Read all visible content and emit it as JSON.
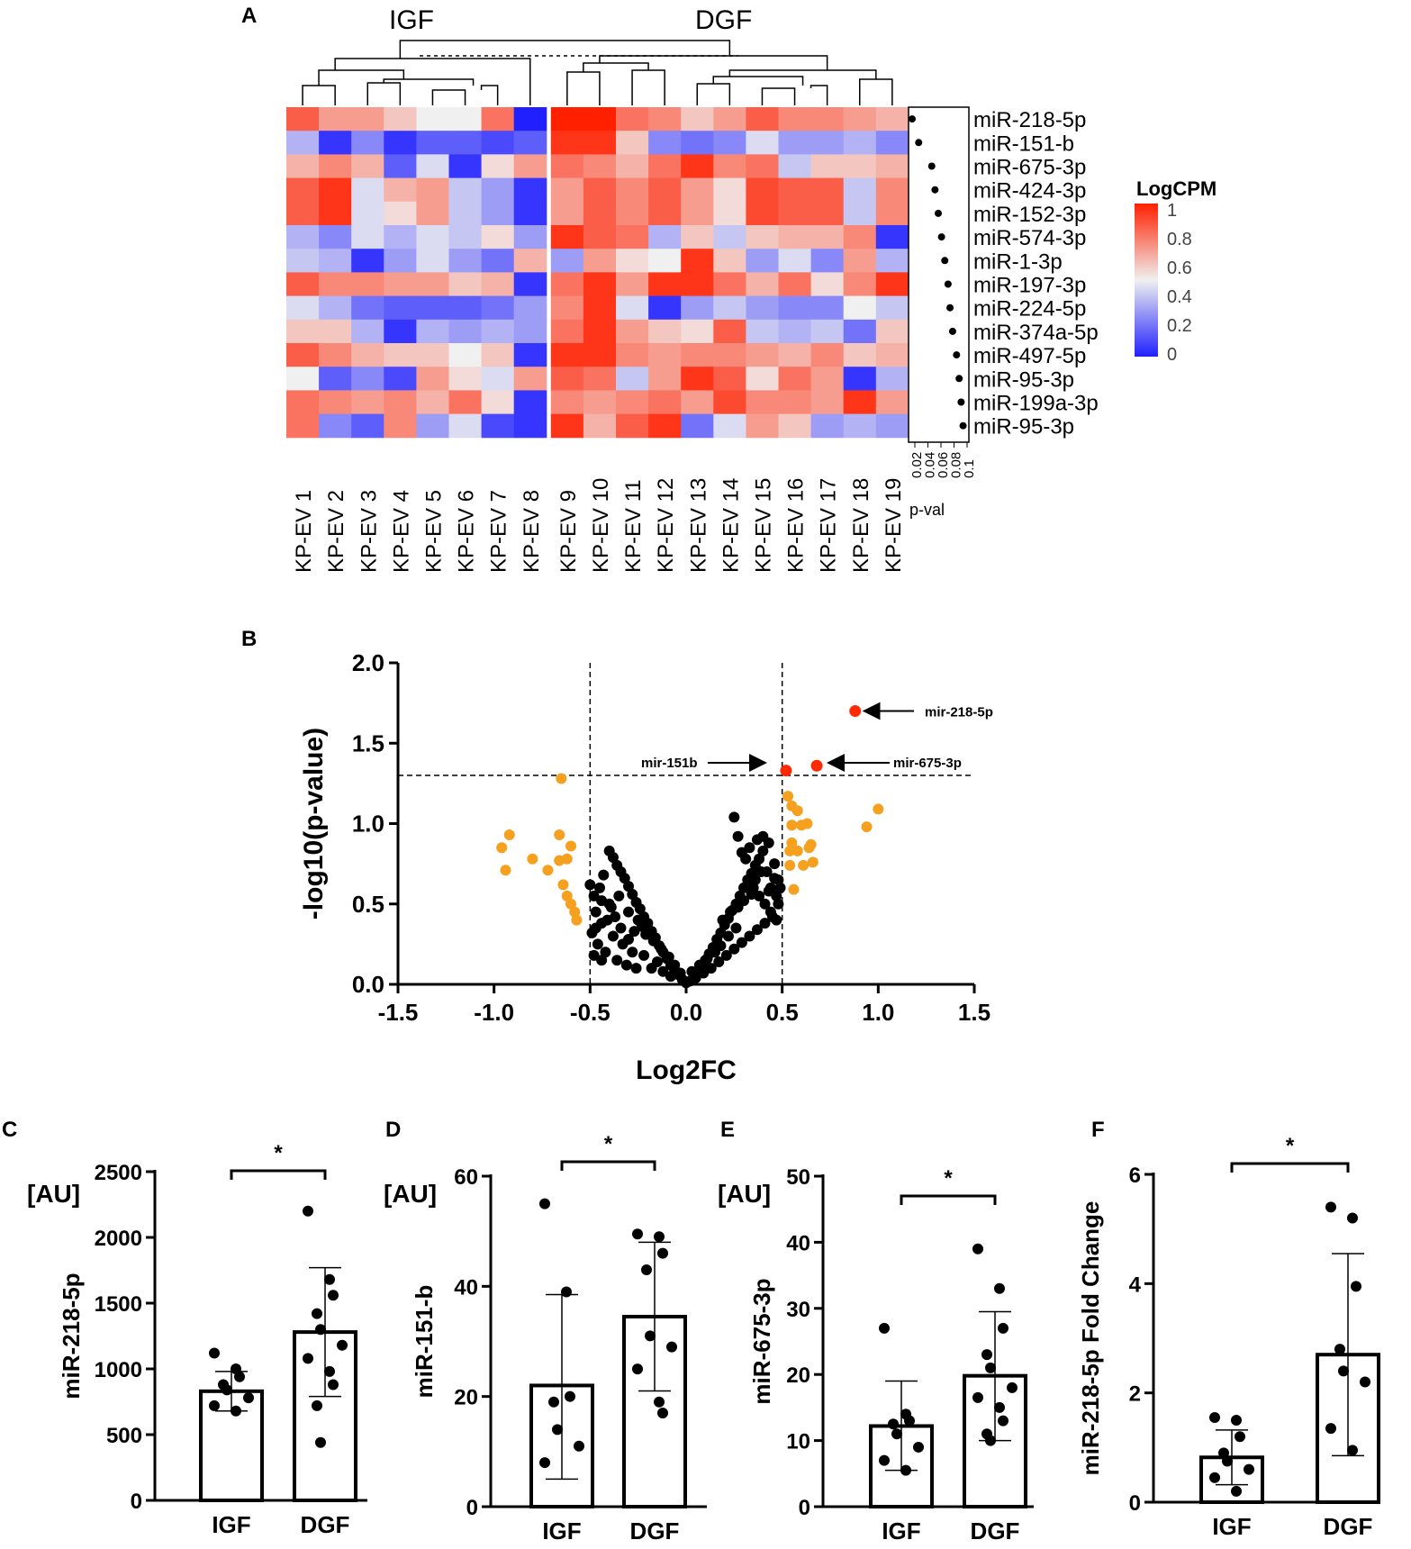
{
  "colors": {
    "heat_low": "#2020ff",
    "heat_mid": "#f0f0f0",
    "heat_high": "#ff2000",
    "volcano_sig": "#ff2a00",
    "volcano_trend": "#f5a01e",
    "volcano_ns": "#000000"
  },
  "panels": {
    "A": "A",
    "B": "B",
    "C": "C",
    "D": "D",
    "E": "E",
    "F": "F"
  },
  "chart_data": [
    {
      "id": "A",
      "type": "heatmap",
      "group_labels": [
        "IGF",
        "DGF"
      ],
      "columns": [
        "KP-EV 1",
        "KP-EV 2",
        "KP-EV 3",
        "KP-EV 4",
        "KP-EV 5",
        "KP-EV 6",
        "KP-EV 7",
        "KP-EV 8",
        "KP-EV 9",
        "KP-EV 10",
        "KP-EV 11",
        "KP-EV 12",
        "KP-EV 13",
        "KP-EV 14",
        "KP-EV 15",
        "KP-EV 16",
        "KP-EV 17",
        "KP-EV 18",
        "KP-EV 19"
      ],
      "rows": [
        "miR-218-5p",
        "miR-151-b",
        "miR-675-3p",
        "miR-424-3p",
        "miR-152-3p",
        "miR-574-3p",
        "miR-1-3p",
        "miR-197-3p",
        "miR-224-5p",
        "miR-374a-5p",
        "miR-497-5p",
        "miR-95-3p",
        "miR-199a-3p",
        "miR-95-3p"
      ],
      "values": [
        [
          0.85,
          0.7,
          0.7,
          0.6,
          0.5,
          0.5,
          0.8,
          0.0,
          1.0,
          1.0,
          0.8,
          0.75,
          0.6,
          0.7,
          0.85,
          0.75,
          0.75,
          0.7,
          0.65
        ],
        [
          0.35,
          0.05,
          0.25,
          0.05,
          0.15,
          0.15,
          0.1,
          0.15,
          0.95,
          0.95,
          0.6,
          0.25,
          0.2,
          0.25,
          0.45,
          0.3,
          0.3,
          0.35,
          0.25
        ],
        [
          0.65,
          0.75,
          0.65,
          0.15,
          0.45,
          0.05,
          0.55,
          0.7,
          0.8,
          0.75,
          0.65,
          0.8,
          0.95,
          0.75,
          0.8,
          0.4,
          0.6,
          0.6,
          0.65
        ],
        [
          0.85,
          0.95,
          0.45,
          0.65,
          0.7,
          0.4,
          0.3,
          0.05,
          0.7,
          0.85,
          0.75,
          0.85,
          0.7,
          0.55,
          0.9,
          0.85,
          0.85,
          0.4,
          0.75
        ],
        [
          0.85,
          0.95,
          0.45,
          0.55,
          0.7,
          0.4,
          0.3,
          0.05,
          0.7,
          0.85,
          0.75,
          0.85,
          0.7,
          0.55,
          0.9,
          0.85,
          0.85,
          0.4,
          0.75
        ],
        [
          0.35,
          0.25,
          0.45,
          0.35,
          0.45,
          0.4,
          0.55,
          0.3,
          0.95,
          0.85,
          0.8,
          0.35,
          0.6,
          0.4,
          0.6,
          0.65,
          0.65,
          0.75,
          0.05
        ],
        [
          0.4,
          0.35,
          0.05,
          0.3,
          0.45,
          0.3,
          0.2,
          0.65,
          0.3,
          0.7,
          0.55,
          0.5,
          0.95,
          0.6,
          0.3,
          0.45,
          0.25,
          0.7,
          0.35
        ],
        [
          0.85,
          0.75,
          0.75,
          0.7,
          0.7,
          0.6,
          0.65,
          0.05,
          0.8,
          0.95,
          0.7,
          0.95,
          0.95,
          0.8,
          0.65,
          0.8,
          0.55,
          0.75,
          0.95
        ],
        [
          0.45,
          0.35,
          0.2,
          0.15,
          0.15,
          0.15,
          0.2,
          0.3,
          0.75,
          0.95,
          0.45,
          0.05,
          0.3,
          0.4,
          0.3,
          0.25,
          0.25,
          0.5,
          0.4
        ],
        [
          0.6,
          0.6,
          0.35,
          0.05,
          0.35,
          0.3,
          0.35,
          0.3,
          0.8,
          0.95,
          0.7,
          0.6,
          0.55,
          0.85,
          0.4,
          0.35,
          0.4,
          0.2,
          0.6
        ],
        [
          0.85,
          0.75,
          0.65,
          0.6,
          0.6,
          0.5,
          0.6,
          0.05,
          0.95,
          0.95,
          0.75,
          0.7,
          0.75,
          0.75,
          0.7,
          0.65,
          0.75,
          0.6,
          0.65
        ],
        [
          0.5,
          0.15,
          0.25,
          0.1,
          0.7,
          0.55,
          0.45,
          0.7,
          0.85,
          0.8,
          0.4,
          0.7,
          0.95,
          0.85,
          0.55,
          0.8,
          0.7,
          0.05,
          0.35
        ],
        [
          0.8,
          0.75,
          0.7,
          0.75,
          0.65,
          0.8,
          0.55,
          0.05,
          0.75,
          0.7,
          0.75,
          0.8,
          0.7,
          0.9,
          0.75,
          0.75,
          0.7,
          0.95,
          0.7
        ],
        [
          0.8,
          0.25,
          0.15,
          0.75,
          0.3,
          0.45,
          0.1,
          0.05,
          0.95,
          0.65,
          0.85,
          0.95,
          0.2,
          0.45,
          0.7,
          0.6,
          0.3,
          0.35,
          0.3
        ]
      ],
      "pvals": [
        0.02,
        0.03,
        0.05,
        0.055,
        0.06,
        0.065,
        0.07,
        0.075,
        0.078,
        0.082,
        0.088,
        0.092,
        0.095,
        0.098
      ],
      "pval_ticks": [
        "0.02",
        "0.04",
        "0.06",
        "0.08",
        "0.1"
      ],
      "pval_label": "p-val",
      "legend_title": "LogCPM",
      "legend_ticks": [
        "1",
        "0.8",
        "0.6",
        "0.4",
        "0.2",
        "0"
      ]
    },
    {
      "id": "B",
      "type": "scatter",
      "xlabel": "Log2FC",
      "ylabel": "-log10(p-value)",
      "xlim": [
        -1.5,
        1.5
      ],
      "ylim": [
        0,
        2.0
      ],
      "xticks": [
        "-1.5",
        "-1.0",
        "-0.5",
        "0.0",
        "0.5",
        "1.0",
        "1.5"
      ],
      "yticks": [
        "0.0",
        "0.5",
        "1.0",
        "1.5",
        "2.0"
      ],
      "vlines": [
        -0.5,
        0.5
      ],
      "hline": 1.3,
      "significant": [
        [
          0.88,
          1.7
        ],
        [
          0.52,
          1.33
        ],
        [
          0.68,
          1.36
        ]
      ],
      "trend": [
        [
          -0.65,
          1.28
        ],
        [
          -0.96,
          0.85
        ],
        [
          -0.92,
          0.93
        ],
        [
          -0.8,
          0.78
        ],
        [
          -0.94,
          0.71
        ],
        [
          -0.72,
          0.71
        ],
        [
          -0.66,
          0.93
        ],
        [
          -0.66,
          0.77
        ],
        [
          -0.62,
          0.78
        ],
        [
          -0.6,
          0.86
        ],
        [
          -0.64,
          0.62
        ],
        [
          -0.62,
          0.55
        ],
        [
          -0.6,
          0.5
        ],
        [
          -0.58,
          0.45
        ],
        [
          -0.57,
          0.4
        ],
        [
          0.53,
          1.17
        ],
        [
          0.55,
          1.11
        ],
        [
          0.58,
          1.08
        ],
        [
          0.55,
          0.99
        ],
        [
          0.6,
          0.99
        ],
        [
          0.63,
          1.0
        ],
        [
          0.55,
          0.88
        ],
        [
          0.58,
          0.83
        ],
        [
          0.54,
          0.83
        ],
        [
          0.64,
          0.85
        ],
        [
          0.61,
          0.74
        ],
        [
          0.54,
          0.74
        ],
        [
          0.56,
          0.59
        ],
        [
          0.65,
          0.87
        ],
        [
          0.66,
          0.76
        ],
        [
          0.94,
          0.98
        ],
        [
          1.0,
          1.09
        ]
      ],
      "ns": [
        [
          0.0,
          0.01
        ],
        [
          0.02,
          0.02
        ],
        [
          -0.02,
          0.03
        ],
        [
          0.04,
          0.05
        ],
        [
          -0.04,
          0.06
        ],
        [
          0.06,
          0.08
        ],
        [
          -0.06,
          0.09
        ],
        [
          0.08,
          0.11
        ],
        [
          -0.08,
          0.12
        ],
        [
          0.1,
          0.15
        ],
        [
          -0.1,
          0.16
        ],
        [
          0.12,
          0.19
        ],
        [
          -0.12,
          0.2
        ],
        [
          0.14,
          0.23
        ],
        [
          -0.14,
          0.24
        ],
        [
          0.16,
          0.28
        ],
        [
          -0.16,
          0.29
        ],
        [
          0.18,
          0.32
        ],
        [
          -0.18,
          0.33
        ],
        [
          0.2,
          0.37
        ],
        [
          -0.2,
          0.38
        ],
        [
          0.22,
          0.41
        ],
        [
          -0.22,
          0.42
        ],
        [
          0.24,
          0.46
        ],
        [
          -0.24,
          0.47
        ],
        [
          0.26,
          0.5
        ],
        [
          -0.26,
          0.51
        ],
        [
          0.28,
          0.55
        ],
        [
          -0.28,
          0.56
        ],
        [
          0.3,
          0.6
        ],
        [
          -0.3,
          0.61
        ],
        [
          0.32,
          0.65
        ],
        [
          -0.32,
          0.66
        ],
        [
          0.34,
          0.69
        ],
        [
          -0.34,
          0.7
        ],
        [
          0.36,
          0.74
        ],
        [
          -0.36,
          0.74
        ],
        [
          0.38,
          0.78
        ],
        [
          -0.38,
          0.79
        ],
        [
          0.4,
          0.83
        ],
        [
          -0.4,
          0.83
        ],
        [
          0.25,
          1.04
        ],
        [
          0.27,
          0.92
        ],
        [
          0.29,
          0.82
        ],
        [
          -0.5,
          0.62
        ],
        [
          -0.45,
          0.6
        ],
        [
          -0.48,
          0.55
        ],
        [
          -0.43,
          0.68
        ],
        [
          -0.47,
          0.45
        ],
        [
          -0.44,
          0.38
        ],
        [
          -0.49,
          0.32
        ],
        [
          -0.46,
          0.25
        ],
        [
          -0.42,
          0.2
        ],
        [
          -0.48,
          0.18
        ],
        [
          -0.44,
          0.15
        ],
        [
          -0.4,
          0.5
        ],
        [
          -0.35,
          0.55
        ],
        [
          -0.3,
          0.45
        ],
        [
          -0.25,
          0.4
        ],
        [
          -0.38,
          0.3
        ],
        [
          -0.33,
          0.25
        ],
        [
          -0.28,
          0.2
        ],
        [
          -0.22,
          0.18
        ],
        [
          -0.36,
          0.15
        ],
        [
          -0.31,
          0.12
        ],
        [
          -0.26,
          0.1
        ],
        [
          -0.18,
          0.1
        ],
        [
          -0.15,
          0.14
        ],
        [
          -0.12,
          0.08
        ],
        [
          -0.08,
          0.05
        ],
        [
          0.05,
          0.04
        ],
        [
          0.09,
          0.07
        ],
        [
          0.13,
          0.1
        ],
        [
          0.17,
          0.14
        ],
        [
          0.21,
          0.18
        ],
        [
          0.25,
          0.22
        ],
        [
          0.29,
          0.26
        ],
        [
          0.33,
          0.3
        ],
        [
          0.37,
          0.34
        ],
        [
          0.41,
          0.38
        ],
        [
          0.45,
          0.42
        ],
        [
          0.47,
          0.55
        ],
        [
          0.44,
          0.6
        ],
        [
          0.48,
          0.65
        ],
        [
          0.42,
          0.7
        ],
        [
          0.46,
          0.75
        ],
        [
          0.43,
          0.88
        ],
        [
          0.4,
          0.92
        ],
        [
          0.37,
          0.9
        ],
        [
          0.33,
          0.85
        ],
        [
          0.31,
          0.78
        ],
        [
          0.35,
          0.6
        ],
        [
          0.38,
          0.55
        ],
        [
          0.41,
          0.5
        ],
        [
          0.44,
          0.45
        ],
        [
          0.47,
          0.4
        ],
        [
          0.26,
          0.35
        ],
        [
          0.22,
          0.3
        ],
        [
          0.18,
          0.24
        ],
        [
          0.15,
          0.2
        ],
        [
          0.11,
          0.16
        ],
        [
          0.07,
          0.12
        ],
        [
          0.03,
          0.08
        ],
        [
          -0.03,
          0.07
        ],
        [
          -0.06,
          0.12
        ],
        [
          -0.09,
          0.17
        ],
        [
          -0.13,
          0.22
        ],
        [
          -0.17,
          0.27
        ],
        [
          -0.21,
          0.31
        ],
        [
          -0.23,
          0.36
        ],
        [
          -0.27,
          0.33
        ],
        [
          -0.3,
          0.28
        ],
        [
          -0.34,
          0.35
        ],
        [
          -0.37,
          0.42
        ],
        [
          -0.39,
          0.48
        ],
        [
          -0.41,
          0.4
        ],
        [
          -0.44,
          0.52
        ],
        [
          -0.47,
          0.35
        ],
        [
          0.19,
          0.4
        ],
        [
          0.23,
          0.45
        ],
        [
          0.27,
          0.48
        ],
        [
          0.3,
          0.52
        ],
        [
          0.34,
          0.56
        ],
        [
          0.36,
          0.65
        ],
        [
          0.39,
          0.7
        ],
        [
          0.43,
          0.58
        ],
        [
          0.46,
          0.66
        ],
        [
          0.48,
          0.5
        ],
        [
          0.49,
          0.6
        ]
      ],
      "annotations": [
        {
          "label": "mir-218-5p",
          "x": 0.88,
          "y": 1.7
        },
        {
          "label": "mir-151b",
          "x": 0.52,
          "y": 1.33
        },
        {
          "label": "mir-675-3p",
          "x": 0.68,
          "y": 1.36
        }
      ]
    },
    {
      "id": "C",
      "type": "bar",
      "categories": [
        "IGF",
        "DGF"
      ],
      "values": [
        830,
        1280
      ],
      "sd_low": [
        680,
        790
      ],
      "sd_high": [
        980,
        1770
      ],
      "points": [
        [
          1120,
          1000,
          940,
          880,
          840,
          780,
          720,
          680
        ],
        [
          2200,
          1680,
          1560,
          1420,
          1300,
          1180,
          1080,
          980,
          880,
          720,
          440
        ]
      ],
      "ylabel": "miR-218-5p",
      "unit": "[AU]",
      "ylim": [
        0,
        2500
      ],
      "yticks": [
        "0",
        "500",
        "1000",
        "1500",
        "2000",
        "2500"
      ],
      "sig": "*"
    },
    {
      "id": "D",
      "type": "bar",
      "categories": [
        "IGF",
        "DGF"
      ],
      "values": [
        22,
        34.5
      ],
      "sd_low": [
        5,
        21
      ],
      "sd_high": [
        38.5,
        48
      ],
      "points": [
        [
          55,
          39,
          20,
          19,
          14,
          11,
          8
        ],
        [
          49.5,
          49,
          46,
          43,
          31,
          29,
          25,
          19,
          17
        ]
      ],
      "ylabel": "miR-151-b",
      "unit": "[AU]",
      "ylim": [
        0,
        60
      ],
      "yticks": [
        "0",
        "20",
        "40",
        "60"
      ],
      "sig": "*"
    },
    {
      "id": "E",
      "type": "bar",
      "categories": [
        "IGF",
        "DGF"
      ],
      "values": [
        12.2,
        19.8
      ],
      "sd_low": [
        5.5,
        10
      ],
      "sd_high": [
        19,
        29.5
      ],
      "points": [
        [
          27,
          14,
          13,
          12.5,
          11,
          9,
          7,
          5.5
        ],
        [
          39,
          33,
          27,
          23,
          21,
          18,
          16.5,
          15,
          13,
          11,
          10
        ]
      ],
      "ylabel": "miR-675-3p",
      "unit": "[AU]",
      "ylim": [
        0,
        50
      ],
      "yticks": [
        "0",
        "10",
        "20",
        "30",
        "40",
        "50"
      ],
      "sig": "*"
    },
    {
      "id": "F",
      "type": "bar",
      "categories": [
        "IGF",
        "DGF"
      ],
      "values": [
        0.82,
        2.7
      ],
      "sd_low": [
        0.32,
        0.85
      ],
      "sd_high": [
        1.32,
        4.55
      ],
      "points": [
        [
          1.55,
          1.5,
          1.2,
          0.9,
          0.75,
          0.6,
          0.45,
          0.2
        ],
        [
          5.4,
          5.2,
          3.95,
          2.8,
          2.4,
          2.2,
          1.35,
          0.95
        ]
      ],
      "ylabel": "miR-218-5p Fold Change",
      "unit": "",
      "ylim": [
        0,
        6
      ],
      "yticks": [
        "0",
        "2",
        "4",
        "6"
      ],
      "sig": "*"
    }
  ]
}
